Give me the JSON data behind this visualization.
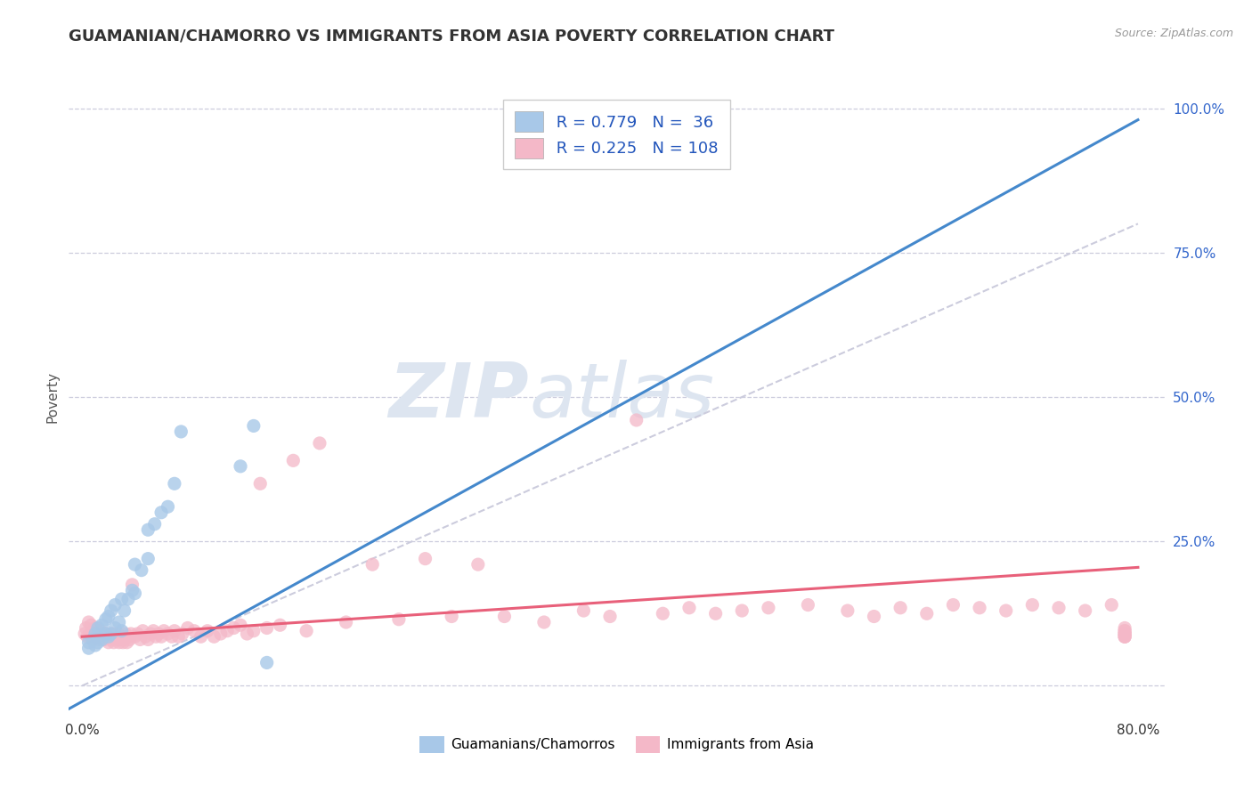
{
  "title": "GUAMANIAN/CHAMORRO VS IMMIGRANTS FROM ASIA POVERTY CORRELATION CHART",
  "source": "Source: ZipAtlas.com",
  "ylabel": "Poverty",
  "legend_r1": "R = 0.779",
  "legend_n1": "N =  36",
  "legend_r2": "R = 0.225",
  "legend_n2": "N = 108",
  "color_blue": "#a8c8e8",
  "color_pink": "#f4b8c8",
  "color_blue_line": "#4488cc",
  "color_pink_line": "#e8607a",
  "color_dashed_line": "#c0c0cc",
  "watermark_zip": "ZIP",
  "watermark_atlas": "atlas",
  "watermark_color": "#dde5f0",
  "blue_scatter_x": [
    0.005,
    0.005,
    0.008,
    0.01,
    0.01,
    0.012,
    0.012,
    0.015,
    0.015,
    0.018,
    0.018,
    0.02,
    0.02,
    0.022,
    0.022,
    0.025,
    0.025,
    0.028,
    0.03,
    0.03,
    0.032,
    0.035,
    0.038,
    0.04,
    0.04,
    0.045,
    0.05,
    0.05,
    0.055,
    0.06,
    0.065,
    0.07,
    0.075,
    0.12,
    0.13,
    0.14
  ],
  "blue_scatter_y": [
    0.065,
    0.075,
    0.08,
    0.07,
    0.09,
    0.075,
    0.1,
    0.08,
    0.105,
    0.09,
    0.115,
    0.085,
    0.12,
    0.09,
    0.13,
    0.1,
    0.14,
    0.11,
    0.095,
    0.15,
    0.13,
    0.15,
    0.165,
    0.16,
    0.21,
    0.2,
    0.22,
    0.27,
    0.28,
    0.3,
    0.31,
    0.35,
    0.44,
    0.38,
    0.45,
    0.04
  ],
  "pink_scatter_x": [
    0.002,
    0.003,
    0.004,
    0.005,
    0.006,
    0.007,
    0.008,
    0.009,
    0.01,
    0.011,
    0.012,
    0.013,
    0.014,
    0.015,
    0.016,
    0.017,
    0.018,
    0.019,
    0.02,
    0.021,
    0.022,
    0.023,
    0.024,
    0.025,
    0.026,
    0.027,
    0.028,
    0.029,
    0.03,
    0.031,
    0.032,
    0.033,
    0.034,
    0.035,
    0.036,
    0.037,
    0.038,
    0.04,
    0.042,
    0.044,
    0.046,
    0.048,
    0.05,
    0.052,
    0.054,
    0.056,
    0.058,
    0.06,
    0.062,
    0.065,
    0.068,
    0.07,
    0.073,
    0.076,
    0.08,
    0.085,
    0.09,
    0.095,
    0.1,
    0.105,
    0.11,
    0.115,
    0.12,
    0.125,
    0.13,
    0.135,
    0.14,
    0.15,
    0.16,
    0.17,
    0.18,
    0.2,
    0.22,
    0.24,
    0.26,
    0.28,
    0.3,
    0.32,
    0.35,
    0.38,
    0.4,
    0.42,
    0.44,
    0.46,
    0.48,
    0.5,
    0.52,
    0.55,
    0.58,
    0.6,
    0.62,
    0.64,
    0.66,
    0.68,
    0.7,
    0.72,
    0.74,
    0.76,
    0.78,
    0.79,
    0.79,
    0.79,
    0.79,
    0.79,
    0.79,
    0.79,
    0.79,
    0.79
  ],
  "pink_scatter_y": [
    0.09,
    0.1,
    0.085,
    0.11,
    0.09,
    0.105,
    0.08,
    0.095,
    0.1,
    0.085,
    0.09,
    0.08,
    0.095,
    0.085,
    0.09,
    0.08,
    0.085,
    0.09,
    0.075,
    0.085,
    0.08,
    0.09,
    0.075,
    0.085,
    0.08,
    0.09,
    0.075,
    0.08,
    0.085,
    0.075,
    0.08,
    0.09,
    0.075,
    0.085,
    0.08,
    0.09,
    0.175,
    0.085,
    0.09,
    0.08,
    0.095,
    0.085,
    0.08,
    0.09,
    0.095,
    0.085,
    0.09,
    0.085,
    0.095,
    0.09,
    0.085,
    0.095,
    0.085,
    0.09,
    0.1,
    0.095,
    0.085,
    0.095,
    0.085,
    0.09,
    0.095,
    0.1,
    0.105,
    0.09,
    0.095,
    0.35,
    0.1,
    0.105,
    0.39,
    0.095,
    0.42,
    0.11,
    0.21,
    0.115,
    0.22,
    0.12,
    0.21,
    0.12,
    0.11,
    0.13,
    0.12,
    0.46,
    0.125,
    0.135,
    0.125,
    0.13,
    0.135,
    0.14,
    0.13,
    0.12,
    0.135,
    0.125,
    0.14,
    0.135,
    0.13,
    0.14,
    0.135,
    0.13,
    0.14,
    0.085,
    0.09,
    0.1,
    0.095,
    0.085,
    0.09,
    0.095,
    0.085,
    0.09
  ],
  "blue_trend_x": [
    -0.01,
    0.8
  ],
  "blue_trend_y": [
    -0.04,
    0.98
  ],
  "pink_trend_x": [
    0.0,
    0.8
  ],
  "pink_trend_y": [
    0.085,
    0.205
  ],
  "dashed_trend_x": [
    0.0,
    0.8
  ],
  "dashed_trend_y": [
    0.0,
    0.8
  ],
  "xlim": [
    -0.01,
    0.82
  ],
  "ylim": [
    -0.05,
    1.05
  ],
  "ytick_positions": [
    0.0,
    0.25,
    0.5,
    0.75,
    1.0
  ],
  "ytick_labels": [
    "",
    "25.0%",
    "50.0%",
    "75.0%",
    "100.0%"
  ],
  "xtick_positions": [
    0.0,
    0.8
  ],
  "xtick_labels": [
    "0.0%",
    "80.0%"
  ],
  "background_color": "#ffffff",
  "grid_color": "#ccccdd",
  "title_fontsize": 13,
  "axis_label_fontsize": 11,
  "tick_fontsize": 11,
  "legend_fontsize": 13,
  "watermark_fontsize_zip": 62,
  "watermark_fontsize_atlas": 62,
  "legend_label1": "Guamanians/Chamorros",
  "legend_label2": "Immigrants from Asia"
}
